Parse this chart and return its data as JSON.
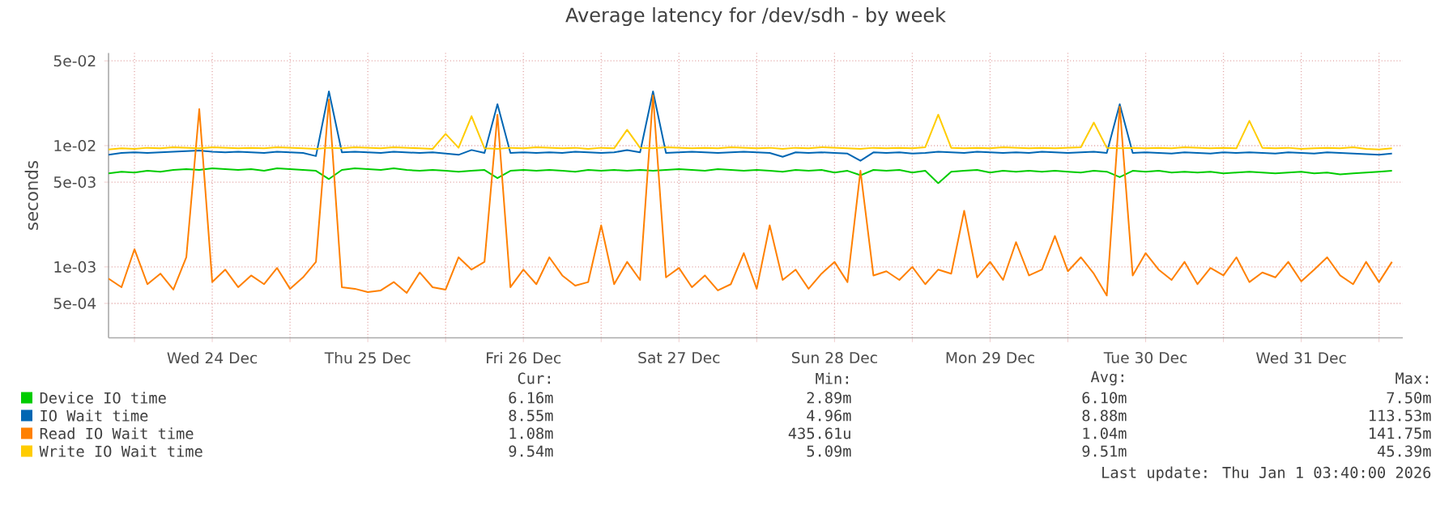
{
  "chart_data": {
    "type": "line",
    "title": "Average latency for /dev/sdh - by week",
    "ylabel": "seconds",
    "log": true,
    "grid": true,
    "legend": "bottom",
    "xlim": [
      "2025-12-23T20:00",
      "2026-01-01T03:40"
    ],
    "ylim": [
      0.00026,
      0.058
    ],
    "xticks": [
      {
        "value": "2025-12-24T00:00",
        "label": null
      },
      {
        "value": "2025-12-24T12:00",
        "label": "Wed 24 Dec"
      },
      {
        "value": "2025-12-25T00:00",
        "label": null
      },
      {
        "value": "2025-12-25T12:00",
        "label": "Thu 25 Dec"
      },
      {
        "value": "2025-12-26T00:00",
        "label": null
      },
      {
        "value": "2025-12-26T12:00",
        "label": "Fri 26 Dec"
      },
      {
        "value": "2025-12-27T00:00",
        "label": null
      },
      {
        "value": "2025-12-27T12:00",
        "label": "Sat 27 Dec"
      },
      {
        "value": "2025-12-28T00:00",
        "label": null
      },
      {
        "value": "2025-12-28T12:00",
        "label": "Sun 28 Dec"
      },
      {
        "value": "2025-12-29T00:00",
        "label": null
      },
      {
        "value": "2025-12-29T12:00",
        "label": "Mon 29 Dec"
      },
      {
        "value": "2025-12-30T00:00",
        "label": null
      },
      {
        "value": "2025-12-30T12:00",
        "label": "Tue 30 Dec"
      },
      {
        "value": "2025-12-31T00:00",
        "label": null
      },
      {
        "value": "2025-12-31T12:00",
        "label": "Wed 31 Dec"
      },
      {
        "value": "2026-01-01T00:00",
        "label": null
      }
    ],
    "yticks": [
      {
        "value": 0.0005,
        "label": "5e-04"
      },
      {
        "value": 0.001,
        "label": "1e-03"
      },
      {
        "value": 0.005,
        "label": "5e-03"
      },
      {
        "value": 0.01,
        "label": "1e-02"
      },
      {
        "value": 0.05,
        "label": "5e-02"
      }
    ],
    "x": [
      "2025-12-23T20:00",
      "2025-12-23T22:00",
      "2025-12-24T00:00",
      "2025-12-24T02:00",
      "2025-12-24T04:00",
      "2025-12-24T06:00",
      "2025-12-24T08:00",
      "2025-12-24T10:00",
      "2025-12-24T12:00",
      "2025-12-24T14:00",
      "2025-12-24T16:00",
      "2025-12-24T18:00",
      "2025-12-24T20:00",
      "2025-12-24T22:00",
      "2025-12-25T00:00",
      "2025-12-25T02:00",
      "2025-12-25T04:00",
      "2025-12-25T06:00",
      "2025-12-25T08:00",
      "2025-12-25T10:00",
      "2025-12-25T12:00",
      "2025-12-25T14:00",
      "2025-12-25T16:00",
      "2025-12-25T18:00",
      "2025-12-25T20:00",
      "2025-12-25T22:00",
      "2025-12-26T00:00",
      "2025-12-26T02:00",
      "2025-12-26T04:00",
      "2025-12-26T06:00",
      "2025-12-26T08:00",
      "2025-12-26T10:00",
      "2025-12-26T12:00",
      "2025-12-26T14:00",
      "2025-12-26T16:00",
      "2025-12-26T18:00",
      "2025-12-26T20:00",
      "2025-12-26T22:00",
      "2025-12-27T00:00",
      "2025-12-27T02:00",
      "2025-12-27T04:00",
      "2025-12-27T06:00",
      "2025-12-27T08:00",
      "2025-12-27T10:00",
      "2025-12-27T12:00",
      "2025-12-27T14:00",
      "2025-12-27T16:00",
      "2025-12-27T18:00",
      "2025-12-27T20:00",
      "2025-12-27T22:00",
      "2025-12-28T00:00",
      "2025-12-28T02:00",
      "2025-12-28T04:00",
      "2025-12-28T06:00",
      "2025-12-28T08:00",
      "2025-12-28T10:00",
      "2025-12-28T12:00",
      "2025-12-28T14:00",
      "2025-12-28T16:00",
      "2025-12-28T18:00",
      "2025-12-28T20:00",
      "2025-12-28T22:00",
      "2025-12-29T00:00",
      "2025-12-29T02:00",
      "2025-12-29T04:00",
      "2025-12-29T06:00",
      "2025-12-29T08:00",
      "2025-12-29T10:00",
      "2025-12-29T12:00",
      "2025-12-29T14:00",
      "2025-12-29T16:00",
      "2025-12-29T18:00",
      "2025-12-29T20:00",
      "2025-12-29T22:00",
      "2025-12-30T00:00",
      "2025-12-30T02:00",
      "2025-12-30T04:00",
      "2025-12-30T06:00",
      "2025-12-30T08:00",
      "2025-12-30T10:00",
      "2025-12-30T12:00",
      "2025-12-30T14:00",
      "2025-12-30T16:00",
      "2025-12-30T18:00",
      "2025-12-30T20:00",
      "2025-12-30T22:00",
      "2025-12-31T00:00",
      "2025-12-31T02:00",
      "2025-12-31T04:00",
      "2025-12-31T06:00",
      "2025-12-31T08:00",
      "2025-12-31T10:00",
      "2025-12-31T12:00",
      "2025-12-31T14:00",
      "2025-12-31T16:00",
      "2025-12-31T18:00",
      "2025-12-31T20:00",
      "2025-12-31T22:00",
      "2026-01-01T00:00",
      "2026-01-01T02:00"
    ],
    "series": [
      {
        "name": "Device IO time",
        "color": "#00cc00",
        "values": [
          0.0059,
          0.0061,
          0.006,
          0.0062,
          0.0061,
          0.0063,
          0.0064,
          0.0063,
          0.0065,
          0.0064,
          0.0063,
          0.0064,
          0.0062,
          0.0065,
          0.0064,
          0.0063,
          0.0062,
          0.0053,
          0.0063,
          0.0065,
          0.0064,
          0.0063,
          0.0065,
          0.0063,
          0.0062,
          0.0063,
          0.0062,
          0.0061,
          0.0062,
          0.0063,
          0.0054,
          0.0062,
          0.0063,
          0.0062,
          0.0063,
          0.0062,
          0.0061,
          0.0063,
          0.0062,
          0.0063,
          0.0062,
          0.0063,
          0.0062,
          0.0063,
          0.0064,
          0.0063,
          0.0062,
          0.0064,
          0.0063,
          0.0062,
          0.0063,
          0.0062,
          0.0061,
          0.0063,
          0.0062,
          0.0063,
          0.006,
          0.0062,
          0.0057,
          0.0063,
          0.0062,
          0.0063,
          0.006,
          0.0062,
          0.0049,
          0.0061,
          0.0062,
          0.0063,
          0.006,
          0.0062,
          0.0061,
          0.0062,
          0.0061,
          0.0062,
          0.0061,
          0.006,
          0.0062,
          0.0061,
          0.0055,
          0.0062,
          0.0061,
          0.0062,
          0.006,
          0.0061,
          0.006,
          0.0061,
          0.0059,
          0.006,
          0.0061,
          0.006,
          0.0059,
          0.006,
          0.0061,
          0.0059,
          0.006,
          0.0058,
          0.0059,
          0.006,
          0.0061,
          0.0062
        ]
      },
      {
        "name": "IO Wait time",
        "color": "#0066b3",
        "values": [
          0.0084,
          0.0087,
          0.0088,
          0.0087,
          0.0088,
          0.0089,
          0.009,
          0.0091,
          0.0089,
          0.0088,
          0.0089,
          0.0088,
          0.0087,
          0.0089,
          0.0088,
          0.0087,
          0.0082,
          0.028,
          0.0088,
          0.0089,
          0.0088,
          0.0087,
          0.0089,
          0.0088,
          0.0087,
          0.0088,
          0.0086,
          0.0084,
          0.0092,
          0.0087,
          0.022,
          0.0087,
          0.0088,
          0.0087,
          0.0088,
          0.0087,
          0.0089,
          0.0088,
          0.0087,
          0.0088,
          0.0092,
          0.0088,
          0.028,
          0.0087,
          0.0088,
          0.0089,
          0.0088,
          0.0087,
          0.0088,
          0.0089,
          0.0088,
          0.0087,
          0.0081,
          0.0088,
          0.0087,
          0.0088,
          0.0087,
          0.0086,
          0.0075,
          0.0088,
          0.0087,
          0.0088,
          0.0086,
          0.0087,
          0.0089,
          0.0088,
          0.0087,
          0.0089,
          0.0088,
          0.0087,
          0.0088,
          0.0087,
          0.0089,
          0.0088,
          0.0087,
          0.0088,
          0.0089,
          0.0087,
          0.022,
          0.0087,
          0.0088,
          0.0087,
          0.0086,
          0.0088,
          0.0087,
          0.0086,
          0.0088,
          0.0087,
          0.0088,
          0.0087,
          0.0086,
          0.0088,
          0.0087,
          0.0086,
          0.0088,
          0.0087,
          0.0086,
          0.0085,
          0.0084,
          0.0086
        ]
      },
      {
        "name": "Read IO Wait time",
        "color": "#ff8000",
        "values": [
          0.0008,
          0.00068,
          0.0014,
          0.00072,
          0.00088,
          0.00065,
          0.0012,
          0.02,
          0.00075,
          0.00095,
          0.00068,
          0.00085,
          0.00072,
          0.00098,
          0.00066,
          0.00082,
          0.0011,
          0.024,
          0.00068,
          0.00066,
          0.00062,
          0.00064,
          0.00075,
          0.00061,
          0.0009,
          0.00068,
          0.00065,
          0.0012,
          0.00095,
          0.0011,
          0.018,
          0.00068,
          0.00095,
          0.00072,
          0.0012,
          0.00085,
          0.0007,
          0.00075,
          0.0022,
          0.00072,
          0.0011,
          0.00078,
          0.026,
          0.00082,
          0.00098,
          0.00068,
          0.00085,
          0.00064,
          0.00072,
          0.0013,
          0.00066,
          0.0022,
          0.00078,
          0.00095,
          0.00066,
          0.00088,
          0.0011,
          0.00075,
          0.0062,
          0.00085,
          0.00092,
          0.00078,
          0.001,
          0.00072,
          0.00095,
          0.00088,
          0.0029,
          0.00082,
          0.0011,
          0.00078,
          0.0016,
          0.00085,
          0.00095,
          0.0018,
          0.00092,
          0.0012,
          0.00088,
          0.00058,
          0.021,
          0.00085,
          0.0013,
          0.00095,
          0.00078,
          0.0011,
          0.00072,
          0.00098,
          0.00085,
          0.0012,
          0.00075,
          0.0009,
          0.00082,
          0.0011,
          0.00076,
          0.00095,
          0.0012,
          0.00085,
          0.00072,
          0.0011,
          0.00075,
          0.0011
        ]
      },
      {
        "name": "Write IO Wait time",
        "color": "#ffcc00",
        "values": [
          0.0093,
          0.0095,
          0.0094,
          0.0096,
          0.0095,
          0.0097,
          0.0096,
          0.0095,
          0.0097,
          0.0096,
          0.0095,
          0.0096,
          0.0095,
          0.0097,
          0.0096,
          0.0095,
          0.0094,
          0.0096,
          0.0095,
          0.0097,
          0.0096,
          0.0095,
          0.0097,
          0.0096,
          0.0095,
          0.0094,
          0.0125,
          0.0096,
          0.0175,
          0.0095,
          0.0094,
          0.0096,
          0.0095,
          0.0097,
          0.0096,
          0.0095,
          0.0096,
          0.0094,
          0.0096,
          0.0095,
          0.0135,
          0.0096,
          0.0095,
          0.0097,
          0.0096,
          0.0095,
          0.0096,
          0.0095,
          0.0097,
          0.0096,
          0.0095,
          0.0096,
          0.0094,
          0.0096,
          0.0095,
          0.0097,
          0.0096,
          0.0095,
          0.0094,
          0.0096,
          0.0095,
          0.0096,
          0.0095,
          0.0097,
          0.018,
          0.0096,
          0.0095,
          0.0096,
          0.0095,
          0.0097,
          0.0096,
          0.0095,
          0.0096,
          0.0095,
          0.0096,
          0.0097,
          0.0155,
          0.0096,
          0.0095,
          0.0096,
          0.0095,
          0.0096,
          0.0095,
          0.0097,
          0.0096,
          0.0095,
          0.0096,
          0.0095,
          0.016,
          0.0096,
          0.0095,
          0.0096,
          0.0094,
          0.0095,
          0.0096,
          0.0095,
          0.0097,
          0.0094,
          0.0093,
          0.0095
        ]
      }
    ],
    "annotations": [
      "Cur:",
      "Min:",
      "Avg:",
      "Max:",
      "6.16m",
      "2.89m",
      "6.10m",
      "7.50m",
      "8.55m",
      "4.96m",
      "8.88m",
      "113.53m",
      "1.08m",
      "435.61u",
      "1.04m",
      "141.75m",
      "9.54m",
      "5.09m",
      "9.51m",
      "45.39m",
      "Last update: Thu Jan  1 03:40:00 2026"
    ]
  }
}
